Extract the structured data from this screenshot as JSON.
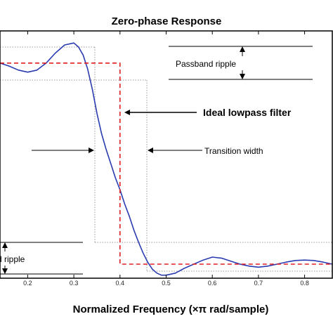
{
  "chart_data": {
    "type": "line",
    "title": "Zero-phase Response",
    "xlabel": "Normalized Frequency (×π rad/sample)",
    "ylabel": "",
    "xlim": [
      0.14,
      0.86
    ],
    "ylim": [
      -0.07,
      1.16
    ],
    "x_ticks": [
      "0.2",
      "0.3",
      "0.4",
      "0.5",
      "0.6",
      "0.7",
      "0.8"
    ],
    "grid": false,
    "series": [
      {
        "color": "#2a3bb0",
        "x": [
          0.14,
          0.16,
          0.18,
          0.2,
          0.22,
          0.24,
          0.26,
          0.28,
          0.3,
          0.31,
          0.32,
          0.33,
          0.34,
          0.35,
          0.36,
          0.37,
          0.38,
          0.39,
          0.4,
          0.41,
          0.42,
          0.43,
          0.44,
          0.45,
          0.46,
          0.47,
          0.48,
          0.49,
          0.5,
          0.52,
          0.54,
          0.56,
          0.58,
          0.6,
          0.62,
          0.64,
          0.66,
          0.68,
          0.7,
          0.72,
          0.74,
          0.76,
          0.78,
          0.8,
          0.82,
          0.84,
          0.86
        ],
        "y": [
          1.0,
          0.985,
          0.965,
          0.955,
          0.965,
          1.0,
          1.05,
          1.09,
          1.1,
          1.08,
          1.04,
          0.97,
          0.87,
          0.75,
          0.65,
          0.57,
          0.5,
          0.43,
          0.37,
          0.3,
          0.24,
          0.17,
          0.11,
          0.055,
          0.01,
          -0.025,
          -0.045,
          -0.055,
          -0.055,
          -0.045,
          -0.02,
          0.0,
          0.02,
          0.035,
          0.03,
          0.015,
          0.0,
          -0.01,
          -0.015,
          -0.01,
          0.0,
          0.01,
          0.018,
          0.02,
          0.018,
          0.01,
          0.0
        ]
      },
      {
        "color": "#e02020",
        "style": "dashed",
        "x": [
          0.14,
          0.4,
          0.4,
          0.86
        ],
        "y": [
          1.0,
          1.0,
          0.0,
          0.0
        ]
      }
    ],
    "annotations": [
      {
        "text": "Passband ripple"
      },
      {
        "text": "Ideal lowpass filter"
      },
      {
        "text": "Transition width"
      },
      {
        "text": "d ripple"
      }
    ]
  }
}
